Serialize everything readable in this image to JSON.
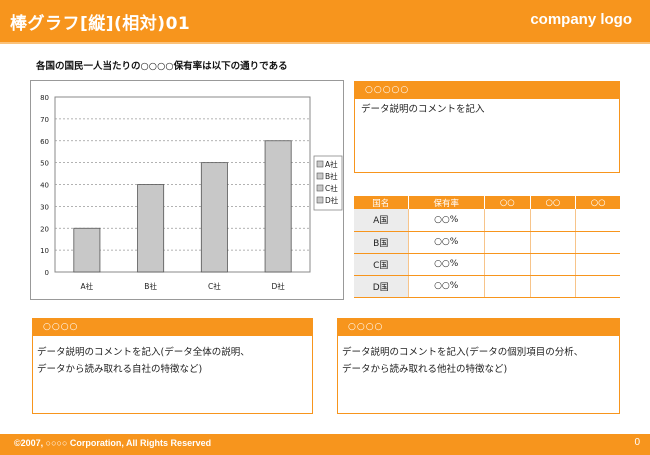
{
  "header": {
    "title": "棒グラフ[縦](相対)01",
    "logo": "company logo"
  },
  "subtitle": "各国の国民一人当たりの○○○○保有率は以下の通りである",
  "chart_data": {
    "type": "bar",
    "categories": [
      "A社",
      "B社",
      "C社",
      "D社"
    ],
    "values": [
      20,
      40,
      50,
      60
    ],
    "ylim": [
      0,
      80
    ],
    "yticks": [
      0,
      10,
      20,
      30,
      40,
      50,
      60,
      70,
      80
    ],
    "grid": true,
    "legend": {
      "placement": "right",
      "entries": [
        "A社",
        "B社",
        "C社",
        "D社"
      ]
    },
    "bar_color": "#c8c8c8",
    "title": "",
    "xlabel": "",
    "ylabel": ""
  },
  "panel_top": {
    "header": "○○○○○",
    "text": "データ説明のコメントを記入"
  },
  "table": {
    "headers": [
      "国名",
      "保有率",
      "○○",
      "○○",
      "○○"
    ],
    "rows": [
      {
        "name": "A国",
        "rate": "○○%"
      },
      {
        "name": "B国",
        "rate": "○○%"
      },
      {
        "name": "C国",
        "rate": "○○%"
      },
      {
        "name": "D国",
        "rate": "○○%"
      }
    ]
  },
  "panel_left": {
    "header": "○○○○",
    "line1": "データ説明のコメントを記入(データ全体の説明、",
    "line2": "データから読み取れる自社の特徴など)"
  },
  "panel_right": {
    "header": "○○○○",
    "line1": "データ説明のコメントを記入(データの個別項目の分析、",
    "line2": "データから読み取れる他社の特徴など)"
  },
  "footer": {
    "copyright": "©2007, ○○○○ Corporation, All Rights Reserved",
    "page": "0"
  },
  "colors": {
    "accent": "#f7951d",
    "bar": "#c8c8c8"
  }
}
